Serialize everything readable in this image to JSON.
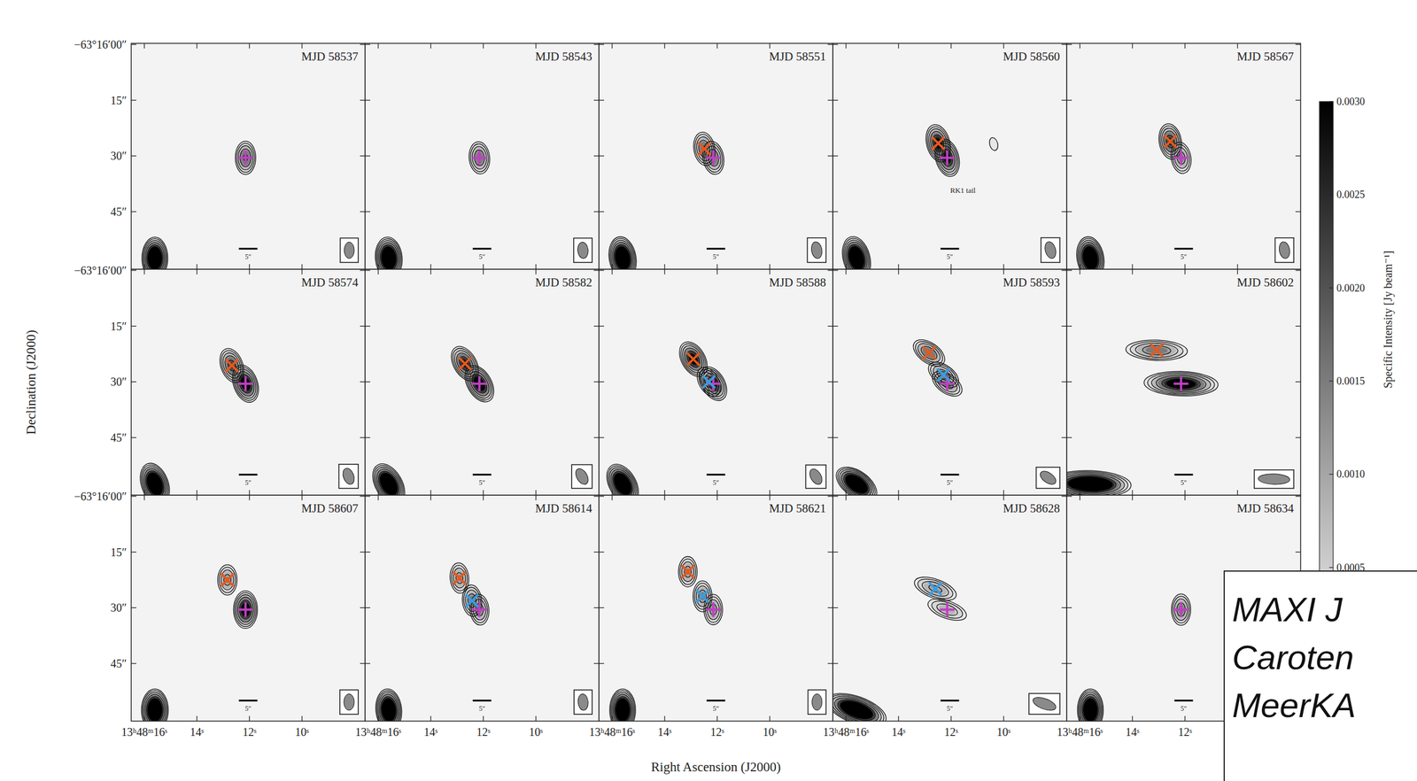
{
  "figure": {
    "xlabel": "Right Ascension (J2000)",
    "ylabel": "Declination (J2000)",
    "xlim": [
      16.5,
      7.6
    ],
    "ylim": [
      -60.5,
      0.3
    ],
    "xticks": [
      {
        "value": 16,
        "label": "13ʰ48ᵐ16ˢ"
      },
      {
        "value": 14,
        "label": "14ˢ"
      },
      {
        "value": 12,
        "label": "12ˢ"
      },
      {
        "value": 10,
        "label": "10ˢ"
      }
    ],
    "yticks": [
      {
        "value": 0,
        "label": "−63°16′00″"
      },
      {
        "value": -15,
        "label": "15″"
      },
      {
        "value": -30,
        "label": "30″"
      },
      {
        "value": -45,
        "label": "45″"
      }
    ],
    "colorbar": {
      "label": "Specific Intensity [Jy beam⁻¹]",
      "lim": [
        0,
        0.003
      ],
      "ticks": [
        0.0005,
        {
          "value": 0.001,
          "label": "0.0010"
        },
        0.0015,
        {
          "value": 0.002,
          "label": "0.0020"
        },
        0.0025,
        {
          "value": 0.003,
          "label": "0.0030"
        }
      ]
    },
    "contour_levels": [
      0.0001,
      0.0002,
      0.0004,
      0.0008,
      0.0016
    ],
    "markers": {
      "core": {
        "marker": "plus",
        "color": "#c03fc4"
      },
      "rk1": {
        "marker": "x",
        "color": "#e8581c"
      },
      "rk2": {
        "marker": "x",
        "color": "#3b9be0"
      }
    },
    "field_source": {
      "ra": 15.6,
      "dec": -57.5,
      "peak": 0.01
    },
    "scale_bar": {
      "length": 5,
      "label": "5″"
    },
    "overlay_text": [
      "MAXI J",
      "Caroten",
      "MeerKA"
    ]
  },
  "chart_data": [
    {
      "type": "image",
      "title": "MJD 58537",
      "tick_labels": "y",
      "beam": {
        "major": 4.4,
        "minor": 2.7,
        "pa": 0
      },
      "core": {
        "ra": 12.15,
        "dec": -30.5,
        "peak": 0.0018
      }
    },
    {
      "type": "image",
      "title": "MJD 58543",
      "tick_labels": false,
      "beam": {
        "major": 4.4,
        "minor": 2.8,
        "pa": 5
      },
      "core": {
        "ra": 12.15,
        "dec": -30.5,
        "peak": 0.0015
      }
    },
    {
      "type": "image",
      "title": "MJD 58551",
      "tick_labels": false,
      "beam": {
        "major": 4.5,
        "minor": 2.8,
        "pa": 10
      },
      "core": {
        "ra": 12.15,
        "dec": -30.5,
        "peak": 0.0016
      },
      "rk1": {
        "ra": 12.49,
        "dec": -28.1,
        "peak": 0.0017
      }
    },
    {
      "type": "image",
      "title": "MJD 58560",
      "tick_labels": false,
      "beam": {
        "major": 4.6,
        "minor": 2.8,
        "pa": 15
      },
      "core": {
        "ra": 12.15,
        "dec": -30.5,
        "peak": 0.0032
      },
      "rk1": {
        "ra": 12.49,
        "dec": -26.6,
        "peak": 0.0032
      },
      "extra_sources": [
        {
          "ra": 10.38,
          "dec": -26.8,
          "peak": 0.00015
        }
      ],
      "annotations": [
        {
          "text": "RK1 tail",
          "ra": 11.55,
          "dec": -39.9
        }
      ]
    },
    {
      "type": "image",
      "title": "MJD 58567",
      "tick_labels": false,
      "beam": {
        "major": 4.5,
        "minor": 2.8,
        "pa": 10
      },
      "core": {
        "ra": 12.15,
        "dec": -30.5,
        "peak": 0.0012
      },
      "rk1": {
        "ra": 12.56,
        "dec": -26.1,
        "peak": 0.0024
      }
    },
    {
      "type": "image",
      "title": "MJD 58574",
      "tick_labels": "y",
      "beam": {
        "major": 4.5,
        "minor": 2.8,
        "pa": 20
      },
      "core": {
        "ra": 12.15,
        "dec": -30.5,
        "peak": 0.004
      },
      "rk1": {
        "ra": 12.67,
        "dec": -25.6,
        "peak": 0.0022
      }
    },
    {
      "type": "image",
      "title": "MJD 58582",
      "tick_labels": false,
      "beam": {
        "major": 4.6,
        "minor": 2.8,
        "pa": 30
      },
      "core": {
        "ra": 12.15,
        "dec": -30.5,
        "peak": 0.0042
      },
      "rk1": {
        "ra": 12.7,
        "dec": -25.1,
        "peak": 0.0028
      }
    },
    {
      "type": "image",
      "title": "MJD 58588",
      "tick_labels": false,
      "beam": {
        "major": 4.5,
        "minor": 2.8,
        "pa": 30
      },
      "core": {
        "ra": 12.15,
        "dec": -30.5,
        "peak": 0.0028
      },
      "rk1": {
        "ra": 12.91,
        "dec": -23.9,
        "peak": 0.0034
      },
      "rk2": {
        "ra": 12.32,
        "dec": -30.0,
        "peak": 0.0012
      }
    },
    {
      "type": "image",
      "title": "MJD 58593",
      "tick_labels": false,
      "beam": {
        "major": 4.8,
        "minor": 2.7,
        "pa": 55
      },
      "core": {
        "ra": 12.15,
        "dec": -30.5,
        "peak": 0.0012
      },
      "rk1": {
        "ra": 12.84,
        "dec": -22.2,
        "peak": 0.0016
      },
      "rk2": {
        "ra": 12.29,
        "dec": -28.1,
        "peak": 0.0013
      }
    },
    {
      "type": "image",
      "title": "MJD 58602",
      "tick_labels": false,
      "beam": {
        "major": 8.5,
        "minor": 2.8,
        "pa": 88
      },
      "core": {
        "ra": 12.15,
        "dec": -30.5,
        "peak": 0.0045
      },
      "rk1": {
        "ra": 13.08,
        "dec": -21.5,
        "peak": 0.0014
      }
    },
    {
      "type": "image",
      "title": "MJD 58607",
      "tick_labels": true,
      "beam": {
        "major": 4.4,
        "minor": 2.8,
        "pa": 0
      },
      "core": {
        "ra": 12.15,
        "dec": -30.5,
        "peak": 0.004
      },
      "rk1": {
        "ra": 12.84,
        "dec": -22.5,
        "peak": 0.0011
      }
    },
    {
      "type": "image",
      "title": "MJD 58614",
      "tick_labels": "x",
      "beam": {
        "major": 4.4,
        "minor": 2.7,
        "pa": 5
      },
      "core": {
        "ra": 12.15,
        "dec": -30.5,
        "peak": 0.0012
      },
      "rk1": {
        "ra": 12.91,
        "dec": -22.0,
        "peak": 0.0011
      },
      "rk2": {
        "ra": 12.43,
        "dec": -28.1,
        "peak": 0.0013
      }
    },
    {
      "type": "image",
      "title": "MJD 58621",
      "tick_labels": "x",
      "beam": {
        "major": 4.4,
        "minor": 2.7,
        "pa": 0
      },
      "core": {
        "ra": 12.15,
        "dec": -30.5,
        "peak": 0.0011
      },
      "rk1": {
        "ra": 13.12,
        "dec": -20.3,
        "peak": 0.0011
      },
      "rk2": {
        "ra": 12.56,
        "dec": -26.9,
        "peak": 0.0012
      }
    },
    {
      "type": "image",
      "title": "MJD 58628",
      "tick_labels": "x",
      "beam": {
        "major": 6.5,
        "minor": 2.8,
        "pa": 70
      },
      "core": {
        "ra": 12.15,
        "dec": -30.5,
        "peak": 0.0007
      },
      "rk2": {
        "ra": 12.6,
        "dec": -24.9,
        "peak": 0.001
      }
    },
    {
      "type": "image",
      "title": "MJD 58634",
      "tick_labels": "x",
      "beam": {
        "major": 4.4,
        "minor": 2.7,
        "pa": 0
      },
      "core": {
        "ra": 12.15,
        "dec": -30.5,
        "peak": 0.0013
      },
      "xticks": [
        {
          "value": 16,
          "label": "13ʰ48ᵐ16ˢ"
        },
        {
          "value": 14,
          "label": "14ˢ"
        },
        {
          "value": 12,
          "label": "12ˢ"
        }
      ]
    }
  ]
}
